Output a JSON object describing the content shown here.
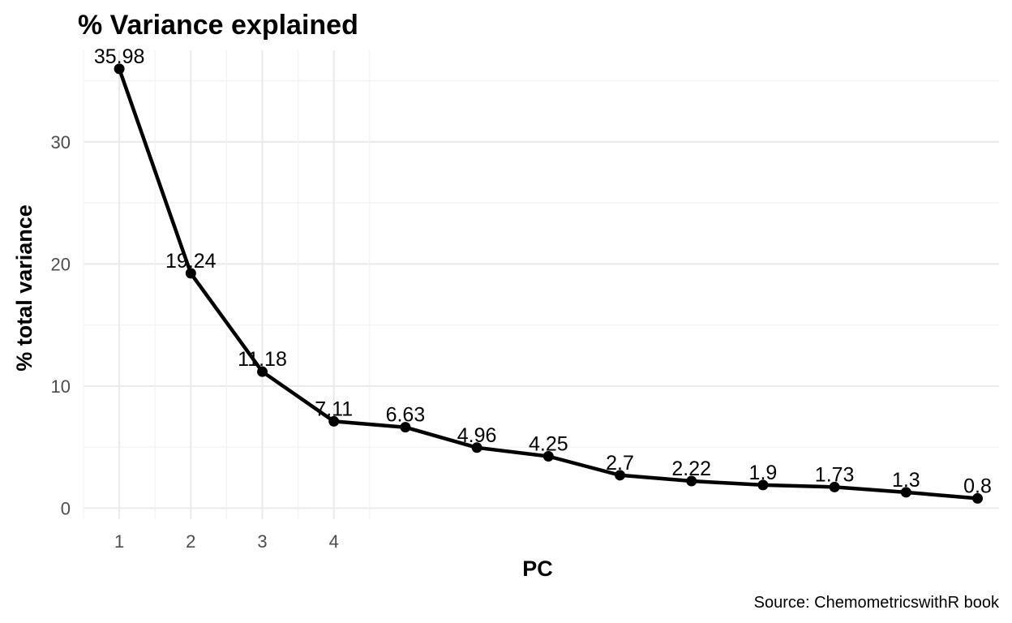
{
  "chart_data": {
    "type": "line",
    "title": "% Variance explained",
    "xlabel": "PC",
    "ylabel": "% total variance",
    "caption": "Source: ChemometricswithR book",
    "x": [
      1,
      2,
      3,
      4,
      5,
      6,
      7,
      8,
      9,
      10,
      11,
      12,
      13
    ],
    "values": [
      35.98,
      19.24,
      11.18,
      7.11,
      6.63,
      4.96,
      4.25,
      2.7,
      2.22,
      1.9,
      1.73,
      1.3,
      0.8
    ],
    "data_labels": [
      "35.98",
      "19.24",
      "11.18",
      "7.11",
      "6.63",
      "4.96",
      "4.25",
      "2.7",
      "2.22",
      "1.9",
      "1.73",
      "1.3",
      "0.8"
    ],
    "x_tick_labels": [
      "1",
      "2",
      "3",
      "4"
    ],
    "y_ticks": [
      0,
      10,
      20,
      30
    ],
    "ylim": [
      -0.9,
      37.5
    ],
    "xlim": [
      0.5,
      13.3
    ],
    "grid": true,
    "colors": {
      "line": "#000000",
      "grid_major": "#ebebeb",
      "grid_minor": "#f2f2f2",
      "tick_text": "#4d4d4d"
    }
  }
}
